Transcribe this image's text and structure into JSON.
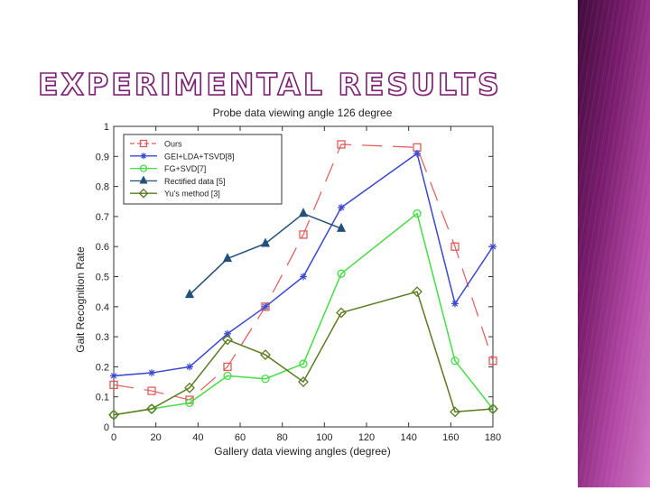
{
  "slide": {
    "title": "EXPERIMENTAL RESULTS",
    "accent_color": "#7a1f6f",
    "panel_colors": [
      "#3f0b3a",
      "#7a1c6e",
      "#b44aa7",
      "#d07ac5"
    ]
  },
  "chart_data": {
    "type": "line",
    "title": "Probe data viewing angle 126 degree",
    "xlabel": "Gallery data viewing angles (degree)",
    "ylabel": "Gait Recognition Rate",
    "xlim": [
      0,
      180
    ],
    "ylim": [
      0,
      1
    ],
    "xticks": [
      0,
      20,
      40,
      60,
      80,
      100,
      120,
      140,
      160,
      180
    ],
    "yticks": [
      0,
      0.1,
      0.2,
      0.3,
      0.4,
      0.5,
      0.6,
      0.7,
      0.8,
      0.9,
      1
    ],
    "grid": false,
    "legend_position": "top-left",
    "series": [
      {
        "name": "Ours",
        "legend_label": "Ours",
        "color": "#e05a5a",
        "marker": "square",
        "dash": "dashed",
        "x": [
          0,
          18,
          36,
          54,
          72,
          90,
          108,
          144,
          162,
          180
        ],
        "y": [
          0.14,
          0.12,
          0.09,
          0.2,
          0.4,
          0.64,
          0.94,
          0.93,
          0.6,
          0.22
        ]
      },
      {
        "name": "GEI+LDA+TSVD[8]",
        "legend_label": "GEI+LDA+TSVD[8]",
        "color": "#3a48d0",
        "marker": "star",
        "dash": "solid",
        "x": [
          0,
          18,
          36,
          54,
          72,
          90,
          108,
          144,
          162,
          180
        ],
        "y": [
          0.17,
          0.18,
          0.2,
          0.31,
          0.4,
          0.5,
          0.73,
          0.91,
          0.41,
          0.6
        ]
      },
      {
        "name": "FG+SVD[7]",
        "legend_label": "FG+SVD[7]",
        "color": "#44dd44",
        "marker": "circle",
        "dash": "solid",
        "x": [
          0,
          18,
          36,
          54,
          72,
          90,
          108,
          144,
          162,
          180
        ],
        "y": [
          0.04,
          0.06,
          0.08,
          0.17,
          0.16,
          0.21,
          0.51,
          0.71,
          0.22,
          0.06
        ]
      },
      {
        "name": "Rectified data [5]",
        "legend_label": "Rectified data [5]",
        "color": "#22507a",
        "marker": "triangle",
        "dash": "solid",
        "x": [
          36,
          54,
          72,
          90,
          108
        ],
        "y": [
          0.44,
          0.56,
          0.61,
          0.71,
          0.66
        ]
      },
      {
        "name": "Yu's method [3]",
        "legend_label": "Yu's method [3]",
        "color": "#5a7a22",
        "marker": "diamond",
        "dash": "solid",
        "x": [
          0,
          18,
          36,
          54,
          72,
          90,
          108,
          144,
          162,
          180
        ],
        "y": [
          0.04,
          0.06,
          0.13,
          0.29,
          0.24,
          0.15,
          0.38,
          0.45,
          0.05,
          0.06
        ]
      }
    ]
  }
}
